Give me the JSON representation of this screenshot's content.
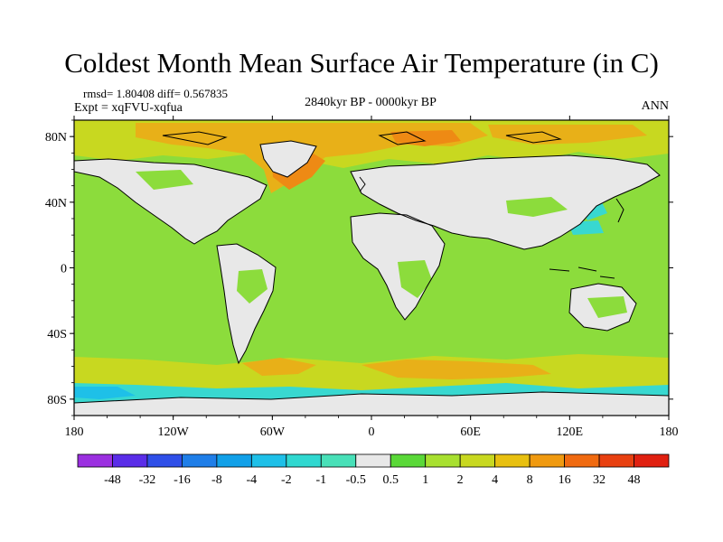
{
  "title": "Coldest Month Mean Surface Air Temperature (in C)",
  "stats": "rmsd= 1.80408 diff= 0.567835",
  "experiment": "Expt = xqFVU-xqfua",
  "period": "2840kyr BP - 0000kyr BP",
  "season": "ANN",
  "axes": {
    "lat_labels": [
      "80N",
      "40N",
      "0",
      "40S",
      "80S"
    ],
    "lat_values": [
      80,
      40,
      0,
      -40,
      -80
    ],
    "lon_labels": [
      "180",
      "120W",
      "60W",
      "0",
      "60E",
      "120E",
      "180"
    ],
    "lon_values": [
      -180,
      -120,
      -60,
      0,
      60,
      120,
      180
    ],
    "lon_range": [
      -180,
      180
    ],
    "lat_range": [
      -90,
      90
    ]
  },
  "colorbar": {
    "labels": [
      "-48",
      "-32",
      "-16",
      "-8",
      "-4",
      "-2",
      "-1",
      "-0.5",
      "0.5",
      "1",
      "2",
      "4",
      "8",
      "16",
      "32",
      "48"
    ],
    "colors": [
      "#9b30e0",
      "#5a2de8",
      "#2f4fe8",
      "#1f7ee8",
      "#11a0e8",
      "#1ec0e8",
      "#30d8d0",
      "#48e0b8",
      "#e8e8e8",
      "#5ad838",
      "#a8e030",
      "#c8d820",
      "#e8c010",
      "#f09a10",
      "#f06a10",
      "#e84010",
      "#e02010"
    ]
  },
  "colors": {
    "land": "#e8e8e8",
    "ocean_base": "#8cdc3c",
    "warm_light": "#c8d820",
    "warm_mid": "#e8b018",
    "warm_high": "#ee8a14",
    "cool": "#38d8d0",
    "cool_deep": "#1ec0e8",
    "coast": "#000000"
  }
}
